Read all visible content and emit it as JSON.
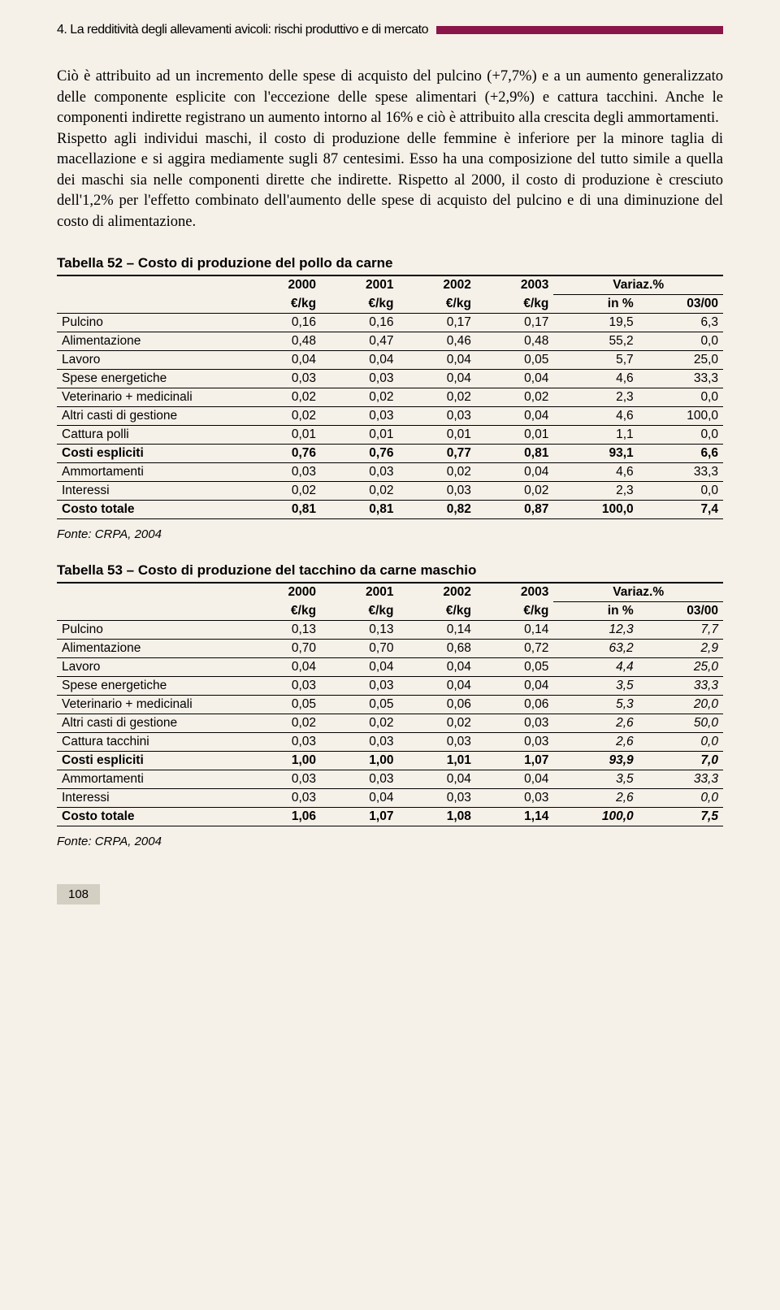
{
  "header": {
    "number": "4.",
    "title": "La redditività degli allevamenti avicoli: rischi produttivo e di mercato"
  },
  "colors": {
    "accent": "#8a1548",
    "background": "#f5f0e8",
    "pagebox": "#d4cfc3"
  },
  "body": "Ciò è attribuito ad un incremento delle spese di acquisto del pulcino (+7,7%) e a un aumento generalizzato delle componente esplicite con l'eccezione delle spese alimentari (+2,9%) e cattura tacchini. Anche le componenti indirette registrano un aumento intorno al 16% e ciò è attribuito alla crescita degli ammortamenti.\nRispetto agli individui maschi, il costo di produzione delle femmine è inferiore per la minore taglia di macellazione e si aggira mediamente sugli 87 centesimi. Esso ha una composizione del tutto simile a quella dei maschi sia nelle componenti dirette che indirette. Rispetto al 2000, il costo di produzione è cresciuto dell'1,2% per l'effetto combinato dell'aumento delle spese di acquisto del pulcino e di una diminuzione del costo di alimentazione.",
  "table52": {
    "title": "Tabella 52 – Costo di produzione del pollo da carne",
    "head_years": [
      "2000",
      "2001",
      "2002",
      "2003"
    ],
    "head_variaz": "Variaz.%",
    "head_units": [
      "€/kg",
      "€/kg",
      "€/kg",
      "€/kg",
      "in %",
      "03/00"
    ],
    "rows": [
      {
        "lab": "Pulcino",
        "v": [
          "0,16",
          "0,16",
          "0,17",
          "0,17",
          "19,5",
          "6,3"
        ]
      },
      {
        "lab": "Alimentazione",
        "v": [
          "0,48",
          "0,47",
          "0,46",
          "0,48",
          "55,2",
          "0,0"
        ]
      },
      {
        "lab": "Lavoro",
        "v": [
          "0,04",
          "0,04",
          "0,04",
          "0,05",
          "5,7",
          "25,0"
        ]
      },
      {
        "lab": "Spese energetiche",
        "v": [
          "0,03",
          "0,03",
          "0,04",
          "0,04",
          "4,6",
          "33,3"
        ]
      },
      {
        "lab": "Veterinario + medicinali",
        "v": [
          "0,02",
          "0,02",
          "0,02",
          "0,02",
          "2,3",
          "0,0"
        ]
      },
      {
        "lab": "Altri casti di gestione",
        "v": [
          "0,02",
          "0,03",
          "0,03",
          "0,04",
          "4,6",
          "100,0"
        ]
      },
      {
        "lab": "Cattura polli",
        "v": [
          "0,01",
          "0,01",
          "0,01",
          "0,01",
          "1,1",
          "0,0"
        ]
      },
      {
        "lab": "Costi espliciti",
        "v": [
          "0,76",
          "0,76",
          "0,77",
          "0,81",
          "93,1",
          "6,6"
        ],
        "bold": true
      },
      {
        "lab": "Ammortamenti",
        "v": [
          "0,03",
          "0,03",
          "0,02",
          "0,04",
          "4,6",
          "33,3"
        ]
      },
      {
        "lab": "Interessi",
        "v": [
          "0,02",
          "0,02",
          "0,03",
          "0,02",
          "2,3",
          "0,0"
        ]
      },
      {
        "lab": "Costo totale",
        "v": [
          "0,81",
          "0,81",
          "0,82",
          "0,87",
          "100,0",
          "7,4"
        ],
        "bold": true
      }
    ],
    "source": "Fonte: CRPA, 2004"
  },
  "table53": {
    "title": "Tabella 53 – Costo di produzione del tacchino da carne maschio",
    "head_years": [
      "2000",
      "2001",
      "2002",
      "2003"
    ],
    "head_variaz": "Variaz.%",
    "head_units": [
      "€/kg",
      "€/kg",
      "€/kg",
      "€/kg",
      "in %",
      "03/00"
    ],
    "rows": [
      {
        "lab": "Pulcino",
        "v": [
          "0,13",
          "0,13",
          "0,14",
          "0,14",
          "12,3",
          "7,7"
        ]
      },
      {
        "lab": "Alimentazione",
        "v": [
          "0,70",
          "0,70",
          "0,68",
          "0,72",
          "63,2",
          "2,9"
        ]
      },
      {
        "lab": "Lavoro",
        "v": [
          "0,04",
          "0,04",
          "0,04",
          "0,05",
          "4,4",
          "25,0"
        ]
      },
      {
        "lab": "Spese energetiche",
        "v": [
          "0,03",
          "0,03",
          "0,04",
          "0,04",
          "3,5",
          "33,3"
        ]
      },
      {
        "lab": "Veterinario + medicinali",
        "v": [
          "0,05",
          "0,05",
          "0,06",
          "0,06",
          "5,3",
          "20,0"
        ]
      },
      {
        "lab": "Altri casti di gestione",
        "v": [
          "0,02",
          "0,02",
          "0,02",
          "0,03",
          "2,6",
          "50,0"
        ]
      },
      {
        "lab": "Cattura tacchini",
        "v": [
          "0,03",
          "0,03",
          "0,03",
          "0,03",
          "2,6",
          "0,0"
        ]
      },
      {
        "lab": "Costi espliciti",
        "v": [
          "1,00",
          "1,00",
          "1,01",
          "1,07",
          "93,9",
          "7,0"
        ],
        "bold": true
      },
      {
        "lab": "Ammortamenti",
        "v": [
          "0,03",
          "0,03",
          "0,04",
          "0,04",
          "3,5",
          "33,3"
        ]
      },
      {
        "lab": "Interessi",
        "v": [
          "0,03",
          "0,04",
          "0,03",
          "0,03",
          "2,6",
          "0,0"
        ]
      },
      {
        "lab": "Costo totale",
        "v": [
          "1,06",
          "1,07",
          "1,08",
          "1,14",
          "100,0",
          "7,5"
        ],
        "bold": true
      }
    ],
    "source": "Fonte: CRPA, 2004",
    "italic_last_cols": true
  },
  "page_number": "108"
}
